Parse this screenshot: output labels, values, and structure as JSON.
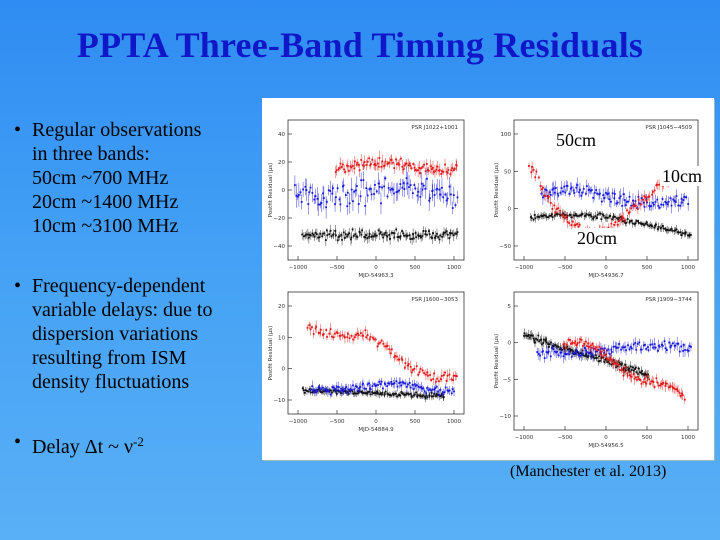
{
  "slide": {
    "title": "PPTA Three-Band Timing Residuals",
    "bullets": [
      {
        "dot": "•",
        "text": "Regular observations\nin three bands:\n50cm ~700 MHz\n20cm ~1400 MHz\n10cm ~3100 MHz"
      },
      {
        "dot": "•",
        "text": "Frequency-dependent\nvariable delays: due to\ndispersion variations\nresulting from ISM\ndensity fluctuations"
      }
    ],
    "delay": {
      "dot": "•",
      "prefix": "Delay Δt ~ ν",
      "exponent": "-2"
    },
    "citation": "(Manchester et al. 2013)"
  },
  "figure": {
    "band_labels": {
      "b50": "50cm",
      "b10": "10cm",
      "b20": "20cm"
    },
    "colors": {
      "band_50cm": "#e01818",
      "band_20cm": "#111111",
      "band_10cm": "#1818d8",
      "axes": "#333333"
    },
    "subplots": [
      {
        "psr": "PSR J1022+1001",
        "ylabel": "Postfit Residual (μs)",
        "xlabel": "MJD-54963.3",
        "xticks": [
          "−1000",
          "−500",
          "0",
          "500",
          "1000"
        ],
        "yticks": [
          "40",
          "20",
          "0",
          "−20",
          "−40"
        ]
      },
      {
        "psr": "PSR J1045−4509",
        "ylabel": "Postfit Residual (μs)",
        "xlabel": "MJD-54936.7",
        "xticks": [
          "−1000",
          "−500",
          "0",
          "500",
          "1000"
        ],
        "yticks": [
          "100",
          "50",
          "0",
          "−50"
        ]
      },
      {
        "psr": "PSR J1600−3053",
        "ylabel": "Postfit Residual (μs)",
        "xlabel": "MJD-54884.9",
        "xticks": [
          "−1000",
          "−500",
          "0",
          "500",
          "1000"
        ],
        "yticks": [
          "20",
          "10",
          "0",
          "−10"
        ]
      },
      {
        "psr": "PSR J1909−3744",
        "ylabel": "Postfit Residual (μs)",
        "xlabel": "MJD-54956.5",
        "xticks": [
          "−1000",
          "−500",
          "0",
          "500",
          "1000"
        ],
        "yticks": [
          "5",
          "0",
          "−5",
          "−10"
        ]
      }
    ]
  }
}
